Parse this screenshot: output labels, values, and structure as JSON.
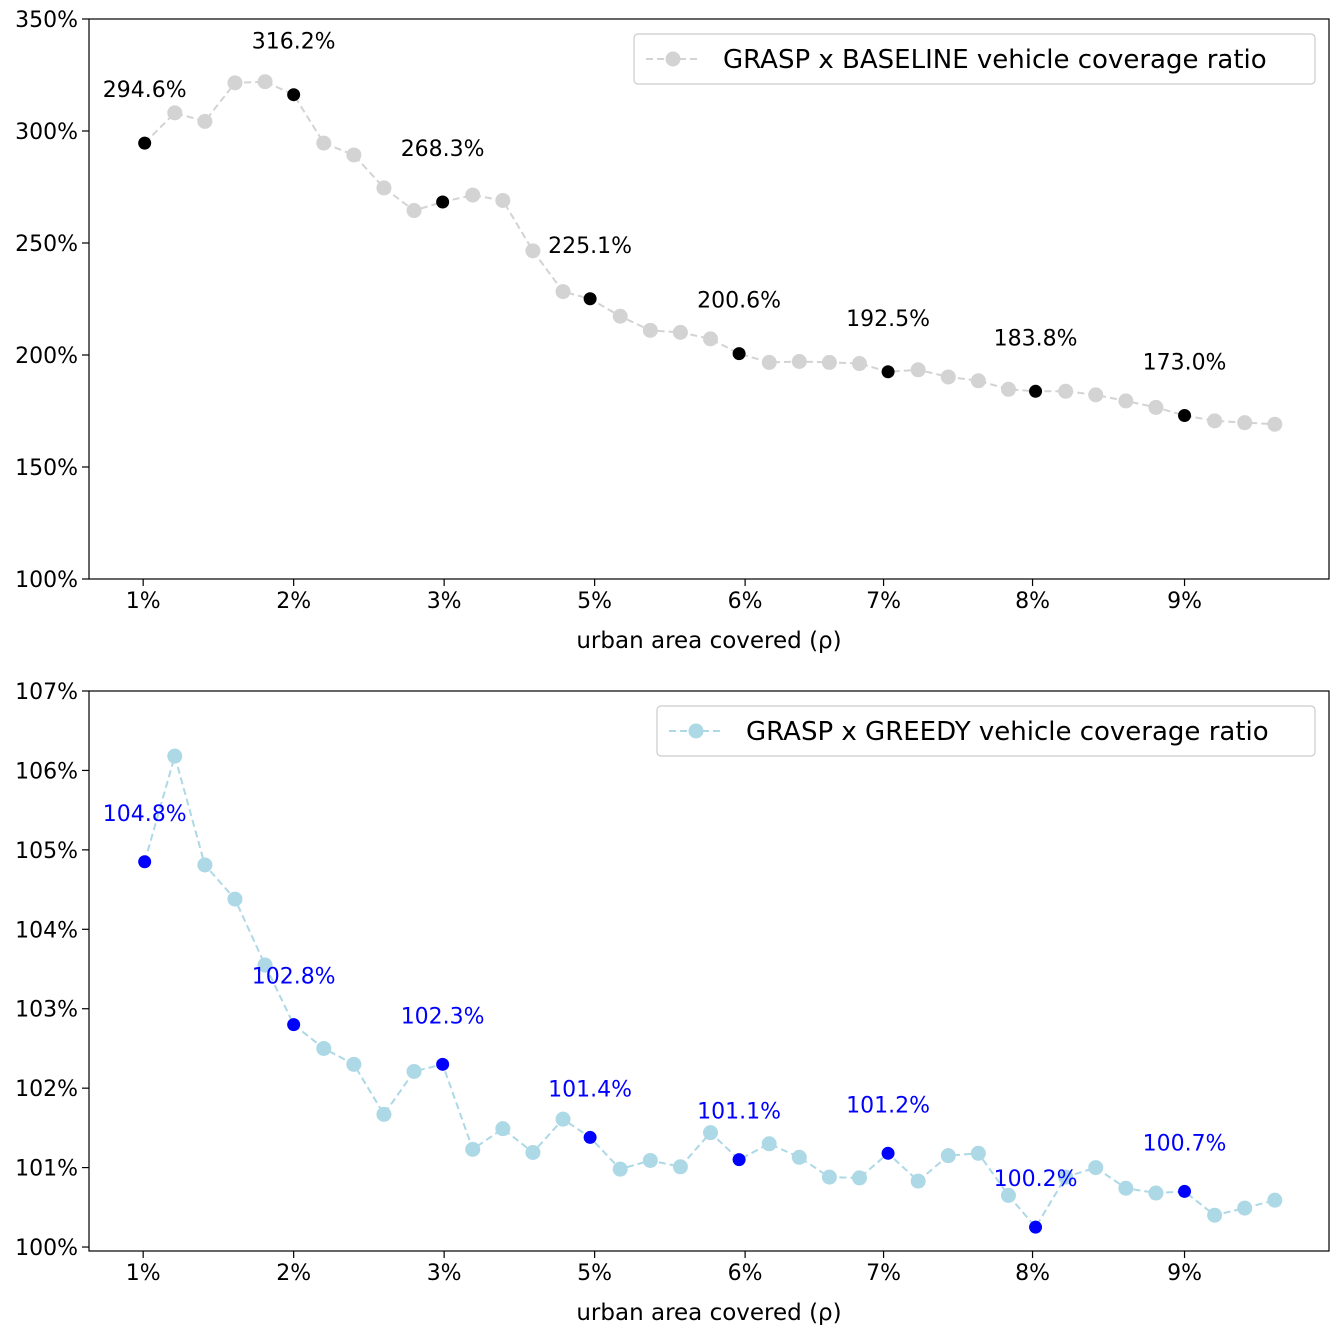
{
  "chart_data": [
    {
      "type": "line",
      "xlabel": "urban area covered (ρ)",
      "ylabel": "",
      "ylim": [
        100,
        350
      ],
      "yticks": [
        "100%",
        "150%",
        "200%",
        "250%",
        "300%",
        "350%"
      ],
      "xticks": [
        {
          "x": 1.0,
          "label": "1%"
        },
        {
          "x": 2.0,
          "label": "2%"
        },
        {
          "x": 3.0,
          "label": "3%"
        },
        {
          "x": 4.0,
          "label": "5%"
        },
        {
          "x": 5.0,
          "label": "6%"
        },
        {
          "x": 5.92,
          "label": "7%"
        },
        {
          "x": 6.91,
          "label": "8%"
        },
        {
          "x": 7.92,
          "label": "9%"
        }
      ],
      "xlim": [
        0.64,
        8.88
      ],
      "grid": false,
      "legend_position": "top-right",
      "series": [
        {
          "name": "GRASP x BASELINE vehicle coverage ratio",
          "color": "#d3d3d3",
          "highlight_color": "#000000",
          "x": [
            1.01,
            1.21,
            1.41,
            1.61,
            1.81,
            2.0,
            2.2,
            2.4,
            2.6,
            2.8,
            2.99,
            3.19,
            3.39,
            3.59,
            3.79,
            3.97,
            4.17,
            4.37,
            4.57,
            4.77,
            4.96,
            5.16,
            5.36,
            5.56,
            5.76,
            5.95,
            6.15,
            6.35,
            6.55,
            6.75,
            6.93,
            7.13,
            7.33,
            7.53,
            7.73,
            7.92,
            8.12,
            8.32,
            8.52
          ],
          "values": [
            294.6,
            308.1,
            304.3,
            321.5,
            322.0,
            316.2,
            294.6,
            289.3,
            274.6,
            264.5,
            268.3,
            271.4,
            269.0,
            246.5,
            228.3,
            225.1,
            217.3,
            211.0,
            210.1,
            207.2,
            200.6,
            196.7,
            197.1,
            196.7,
            196.2,
            192.5,
            193.4,
            190.2,
            188.5,
            184.7,
            183.8,
            183.8,
            182.2,
            179.5,
            176.6,
            173.0,
            170.6,
            169.8,
            169.1
          ]
        }
      ],
      "annotations": [
        {
          "x": 1.01,
          "y": 294.6,
          "text": "294.6%"
        },
        {
          "x": 2.0,
          "y": 316.2,
          "text": "316.2%"
        },
        {
          "x": 2.99,
          "y": 268.3,
          "text": "268.3%"
        },
        {
          "x": 3.97,
          "y": 225.1,
          "text": "225.1%"
        },
        {
          "x": 4.96,
          "y": 200.6,
          "text": "200.6%"
        },
        {
          "x": 5.95,
          "y": 192.5,
          "text": "192.5%"
        },
        {
          "x": 6.93,
          "y": 183.8,
          "text": "183.8%"
        },
        {
          "x": 7.92,
          "y": 173.0,
          "text": "173.0%"
        }
      ]
    },
    {
      "type": "line",
      "xlabel": "urban area covered (ρ)",
      "ylabel": "",
      "ylim": [
        99.95,
        107.0
      ],
      "yticks": [
        "100%",
        "101%",
        "102%",
        "103%",
        "104%",
        "105%",
        "106%",
        "107%"
      ],
      "xticks": [
        {
          "x": 1.0,
          "label": "1%"
        },
        {
          "x": 2.0,
          "label": "2%"
        },
        {
          "x": 3.0,
          "label": "3%"
        },
        {
          "x": 4.0,
          "label": "5%"
        },
        {
          "x": 5.0,
          "label": "6%"
        },
        {
          "x": 5.92,
          "label": "7%"
        },
        {
          "x": 6.91,
          "label": "8%"
        },
        {
          "x": 7.92,
          "label": "9%"
        }
      ],
      "xlim": [
        0.64,
        8.88
      ],
      "grid": false,
      "legend_position": "top-right",
      "series": [
        {
          "name": "GRASP x GREEDY vehicle coverage ratio",
          "color": "#add8e6",
          "highlight_color": "#0000ff",
          "x": [
            1.01,
            1.21,
            1.41,
            1.61,
            1.81,
            2.0,
            2.2,
            2.4,
            2.6,
            2.8,
            2.99,
            3.19,
            3.39,
            3.59,
            3.79,
            3.97,
            4.17,
            4.37,
            4.57,
            4.77,
            4.96,
            5.16,
            5.36,
            5.56,
            5.76,
            5.95,
            6.15,
            6.35,
            6.55,
            6.75,
            6.93,
            7.13,
            7.33,
            7.53,
            7.73,
            7.92,
            8.12,
            8.32,
            8.52
          ],
          "values": [
            104.85,
            106.18,
            104.81,
            104.38,
            103.55,
            102.8,
            102.5,
            102.3,
            101.67,
            102.21,
            102.3,
            101.23,
            101.49,
            101.19,
            101.61,
            101.38,
            100.98,
            101.09,
            101.01,
            101.44,
            101.1,
            101.3,
            101.13,
            100.88,
            100.87,
            101.18,
            100.83,
            101.15,
            101.18,
            100.65,
            100.25,
            100.88,
            101.0,
            100.74,
            100.68,
            100.7,
            100.4,
            100.49,
            100.59
          ]
        }
      ],
      "annotations": [
        {
          "x": 1.01,
          "y": 104.85,
          "text": "104.8%"
        },
        {
          "x": 2.0,
          "y": 102.8,
          "text": "102.8%"
        },
        {
          "x": 2.99,
          "y": 102.3,
          "text": "102.3%"
        },
        {
          "x": 3.97,
          "y": 101.38,
          "text": "101.4%"
        },
        {
          "x": 4.96,
          "y": 101.1,
          "text": "101.1%"
        },
        {
          "x": 5.95,
          "y": 101.18,
          "text": "101.2%"
        },
        {
          "x": 6.93,
          "y": 100.25,
          "text": "100.2%"
        },
        {
          "x": 7.92,
          "y": 100.7,
          "text": "100.7%"
        }
      ]
    }
  ]
}
